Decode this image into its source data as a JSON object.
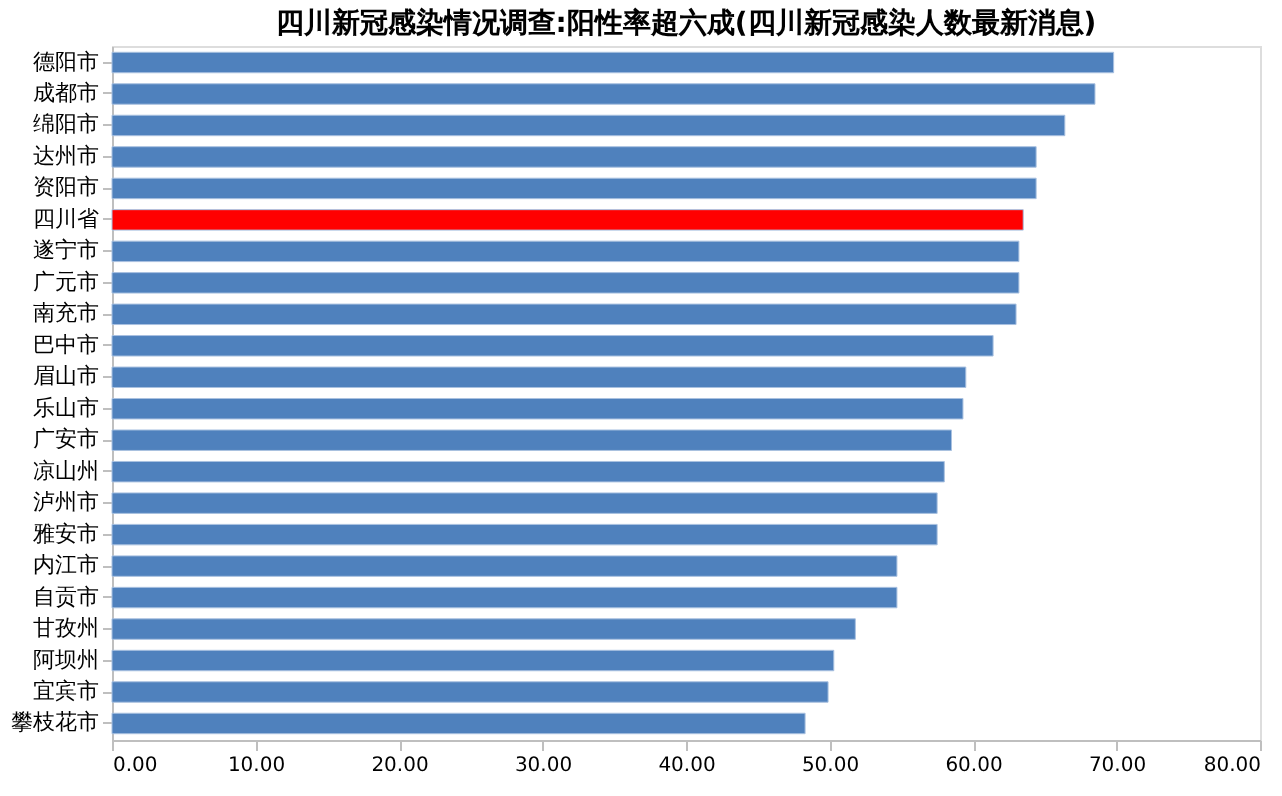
{
  "chart_data": {
    "type": "bar",
    "orientation": "horizontal",
    "title": "四川新冠感染情况调查:阳性率超六成(四川新冠感染人数最新消息)",
    "categories": [
      "德阳市",
      "成都市",
      "绵阳市",
      "达州市",
      "资阳市",
      "四川省",
      "遂宁市",
      "广元市",
      "南充市",
      "巴中市",
      "眉山市",
      "乐山市",
      "广安市",
      "凉山州",
      "泸州市",
      "雅安市",
      "内江市",
      "自贡市",
      "甘孜州",
      "阿坝州",
      "宜宾市",
      "攀枝花市"
    ],
    "values": [
      69.8,
      68.5,
      66.4,
      64.4,
      64.4,
      63.5,
      63.2,
      63.2,
      63.0,
      61.4,
      59.5,
      59.3,
      58.5,
      58.0,
      57.5,
      57.5,
      54.7,
      54.7,
      51.8,
      50.3,
      49.9,
      48.3
    ],
    "colors": [
      "#4f81bd",
      "#4f81bd",
      "#4f81bd",
      "#4f81bd",
      "#4f81bd",
      "#ff0000",
      "#4f81bd",
      "#4f81bd",
      "#4f81bd",
      "#4f81bd",
      "#4f81bd",
      "#4f81bd",
      "#4f81bd",
      "#4f81bd",
      "#4f81bd",
      "#4f81bd",
      "#4f81bd",
      "#4f81bd",
      "#4f81bd",
      "#4f81bd",
      "#4f81bd",
      "#4f81bd"
    ],
    "xlim": [
      0,
      80
    ],
    "xticks": [
      {
        "value": 0,
        "label": "0.00"
      },
      {
        "value": 10,
        "label": "10.00"
      },
      {
        "value": 20,
        "label": "20.00"
      },
      {
        "value": 30,
        "label": "30.00"
      },
      {
        "value": 40,
        "label": "40.00"
      },
      {
        "value": 50,
        "label": "50.00"
      },
      {
        "value": 60,
        "label": "60.00"
      },
      {
        "value": 70,
        "label": "70.00"
      },
      {
        "value": 80,
        "label": "80.00"
      }
    ],
    "grid": false
  }
}
